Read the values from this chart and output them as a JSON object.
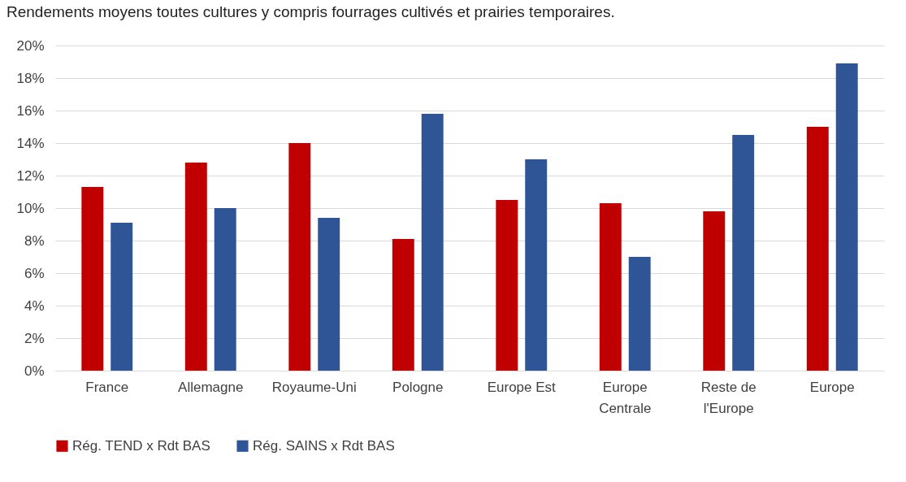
{
  "chart_data": {
    "type": "bar",
    "title": "Rendements moyens toutes cultures y compris fourrages cultivés et prairies temporaires.",
    "categories": [
      "France",
      "Allemagne",
      "Royaume-Uni",
      "Pologne",
      "Europe Est",
      "Europe Centrale",
      "Reste de l'Europe",
      "Europe"
    ],
    "series": [
      {
        "name": "Rég. TEND x Rdt BAS",
        "color": "#c00000",
        "values": [
          11.3,
          12.8,
          14.0,
          8.1,
          10.5,
          10.3,
          9.8,
          15.0
        ]
      },
      {
        "name": "Rég. SAINS x Rdt BAS",
        "color": "#2f5597",
        "values": [
          9.1,
          10.0,
          9.4,
          15.8,
          13.0,
          7.0,
          14.5,
          18.9
        ]
      }
    ],
    "ylim": [
      0,
      20
    ],
    "yticks": [
      {
        "value": 0,
        "label": "0%"
      },
      {
        "value": 2,
        "label": "2%"
      },
      {
        "value": 4,
        "label": "4%"
      },
      {
        "value": 6,
        "label": "6%"
      },
      {
        "value": 8,
        "label": "8%"
      },
      {
        "value": 10,
        "label": "10%"
      },
      {
        "value": 12,
        "label": "12%"
      },
      {
        "value": 14,
        "label": "14%"
      },
      {
        "value": 16,
        "label": "16%"
      },
      {
        "value": 18,
        "label": "18%"
      },
      {
        "value": 20,
        "label": "20%"
      }
    ],
    "grid": "y",
    "legend": "bottom"
  }
}
